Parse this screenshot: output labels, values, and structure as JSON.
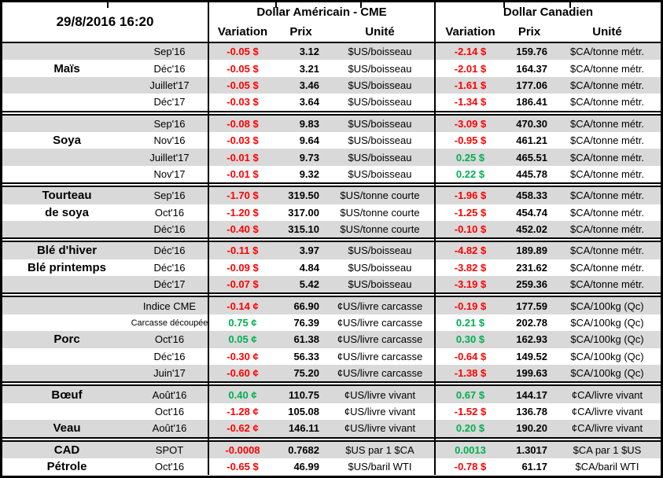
{
  "meta": {
    "timestamp": "29/8/2016 16:20"
  },
  "header": {
    "usd_title": "Dollar Américain - CME",
    "cad_title": "Dollar Canadien",
    "col_variation": "Variation",
    "col_prix": "Prix",
    "col_unite": "Unité"
  },
  "colors": {
    "negative_variation": "#ff0000",
    "positive_variation": "#00b050",
    "row_band": "#d9d9d9",
    "border": "#000000"
  },
  "groups": [
    {
      "commodity": "Maïs",
      "rows": [
        {
          "label": "",
          "month": "Sep'16",
          "us_var": "-0.05 $",
          "us_prix": "3.12",
          "us_unit": "$US/boisseau",
          "ca_var": "-2.14 $",
          "ca_prix": "159.76",
          "ca_unit": "$CA/tonne métr."
        },
        {
          "label": "Maïs",
          "month": "Déc'16",
          "us_var": "-0.05 $",
          "us_prix": "3.21",
          "us_unit": "$US/boisseau",
          "ca_var": "-2.01 $",
          "ca_prix": "164.37",
          "ca_unit": "$CA/tonne métr."
        },
        {
          "label": "",
          "month": "Juillet'17",
          "us_var": "-0.05 $",
          "us_prix": "3.46",
          "us_unit": "$US/boisseau",
          "ca_var": "-1.61 $",
          "ca_prix": "177.06",
          "ca_unit": "$CA/tonne métr."
        },
        {
          "label": "",
          "month": "Déc'17",
          "us_var": "-0.03 $",
          "us_prix": "3.64",
          "us_unit": "$US/boisseau",
          "ca_var": "-1.34 $",
          "ca_prix": "186.41",
          "ca_unit": "$CA/tonne métr."
        }
      ]
    },
    {
      "commodity": "Soya",
      "rows": [
        {
          "label": "",
          "month": "Sep'16",
          "us_var": "-0.08 $",
          "us_prix": "9.83",
          "us_unit": "$US/boisseau",
          "ca_var": "-3.09 $",
          "ca_prix": "470.30",
          "ca_unit": "$CA/tonne métr."
        },
        {
          "label": "Soya",
          "month": "Nov'16",
          "us_var": "-0.03 $",
          "us_prix": "9.64",
          "us_unit": "$US/boisseau",
          "ca_var": "-0.95 $",
          "ca_prix": "461.21",
          "ca_unit": "$CA/tonne métr."
        },
        {
          "label": "",
          "month": "Juillet'17",
          "us_var": "-0.01 $",
          "us_prix": "9.73",
          "us_unit": "$US/boisseau",
          "ca_var": "0.25 $",
          "ca_prix": "465.51",
          "ca_unit": "$CA/tonne métr."
        },
        {
          "label": "",
          "month": "Nov'17",
          "us_var": "-0.01 $",
          "us_prix": "9.32",
          "us_unit": "$US/boisseau",
          "ca_var": "0.22 $",
          "ca_prix": "445.78",
          "ca_unit": "$CA/tonne métr."
        }
      ]
    },
    {
      "commodity": "Tourteau de soya",
      "rows": [
        {
          "label": "Tourteau",
          "month": "Sep'16",
          "us_var": "-1.70 $",
          "us_prix": "319.50",
          "us_unit": "$US/tonne courte",
          "ca_var": "-1.96 $",
          "ca_prix": "458.33",
          "ca_unit": "$CA/tonne métr."
        },
        {
          "label": "de soya",
          "month": "Oct'16",
          "us_var": "-1.20 $",
          "us_prix": "317.00",
          "us_unit": "$US/tonne courte",
          "ca_var": "-1.25 $",
          "ca_prix": "454.74",
          "ca_unit": "$CA/tonne métr."
        },
        {
          "label": "",
          "month": "Déc'16",
          "us_var": "-0.40 $",
          "us_prix": "315.10",
          "us_unit": "$US/tonne courte",
          "ca_var": "-0.10 $",
          "ca_prix": "452.02",
          "ca_unit": "$CA/tonne métr."
        }
      ]
    },
    {
      "commodity": "Blé",
      "rows": [
        {
          "label": "Blé d'hiver",
          "month": "Déc'16",
          "us_var": "-0.11 $",
          "us_prix": "3.97",
          "us_unit": "$US/boisseau",
          "ca_var": "-4.82 $",
          "ca_prix": "189.89",
          "ca_unit": "$CA/tonne métr."
        },
        {
          "label": "Blé printemps",
          "month": "Déc'16",
          "us_var": "-0.09 $",
          "us_prix": "4.84",
          "us_unit": "$US/boisseau",
          "ca_var": "-3.82 $",
          "ca_prix": "231.62",
          "ca_unit": "$CA/tonne métr."
        },
        {
          "label": "",
          "month": "Déc'17",
          "us_var": "-0.07 $",
          "us_prix": "5.42",
          "us_unit": "$US/boisseau",
          "ca_var": "-3.19 $",
          "ca_prix": "259.36",
          "ca_unit": "$CA/tonne métr."
        }
      ]
    },
    {
      "commodity": "Porc",
      "rows": [
        {
          "label": "",
          "month": "Indice CME",
          "us_var": "-0.14 ¢",
          "us_prix": "66.90",
          "us_unit": "¢US/livre carcasse",
          "ca_var": "-0.19 $",
          "ca_prix": "177.59",
          "ca_unit": "$CA/100kg (Qc)"
        },
        {
          "label": "",
          "month": "Carcasse découpée",
          "month_small": true,
          "us_var": "0.75 ¢",
          "us_prix": "76.39",
          "us_unit": "¢US/livre carcasse",
          "ca_var": "0.21 $",
          "ca_prix": "202.78",
          "ca_unit": "$CA/100kg (Qc)"
        },
        {
          "label": "Porc",
          "month": "Oct'16",
          "us_var": "0.05 ¢",
          "us_prix": "61.38",
          "us_unit": "¢US/livre carcasse",
          "ca_var": "0.30 $",
          "ca_prix": "162.93",
          "ca_unit": "$CA/100kg (Qc)"
        },
        {
          "label": "",
          "month": "Déc'16",
          "us_var": "-0.30 ¢",
          "us_prix": "56.33",
          "us_unit": "¢US/livre carcasse",
          "ca_var": "-0.64 $",
          "ca_prix": "149.52",
          "ca_unit": "$CA/100kg (Qc)"
        },
        {
          "label": "",
          "month": "Juin'17",
          "us_var": "-0.60 ¢",
          "us_prix": "75.20",
          "us_unit": "¢US/livre carcasse",
          "ca_var": "-1.38 $",
          "ca_prix": "199.63",
          "ca_unit": "$CA/100kg (Qc)"
        }
      ]
    },
    {
      "commodity": "Bœuf / Veau",
      "rows": [
        {
          "label": "Bœuf",
          "month": "Août'16",
          "us_var": "0.40 ¢",
          "us_prix": "110.75",
          "us_unit": "¢US/livre vivant",
          "ca_var": "0.67 $",
          "ca_prix": "144.17",
          "ca_unit": "¢CA/livre vivant"
        },
        {
          "label": "",
          "month": "Oct'16",
          "us_var": "-1.28 ¢",
          "us_prix": "105.08",
          "us_unit": "¢US/livre vivant",
          "ca_var": "-1.52 $",
          "ca_prix": "136.78",
          "ca_unit": "¢CA/livre vivant"
        },
        {
          "label": "Veau",
          "month": "Août'16",
          "us_var": "-0.62 ¢",
          "us_prix": "146.11",
          "us_unit": "¢US/livre vivant",
          "ca_var": "0.20 $",
          "ca_prix": "190.20",
          "ca_unit": "¢CA/livre vivant"
        }
      ]
    },
    {
      "commodity": "CAD / Pétrole",
      "rows": [
        {
          "label": "CAD",
          "month": "SPOT",
          "us_var": "-0.0008",
          "us_prix": "0.7682",
          "us_unit": "$US par 1 $CA",
          "ca_var": "0.0013",
          "ca_prix": "1.3017",
          "ca_unit": "$CA par 1 $US"
        },
        {
          "label": "Pétrole",
          "month": "Oct'16",
          "us_var": "-0.65 $",
          "us_prix": "46.99",
          "us_unit": "$US/baril WTI",
          "ca_var": "-0.78 $",
          "ca_prix": "61.17",
          "ca_unit": "$CA/baril WTI"
        }
      ]
    }
  ]
}
